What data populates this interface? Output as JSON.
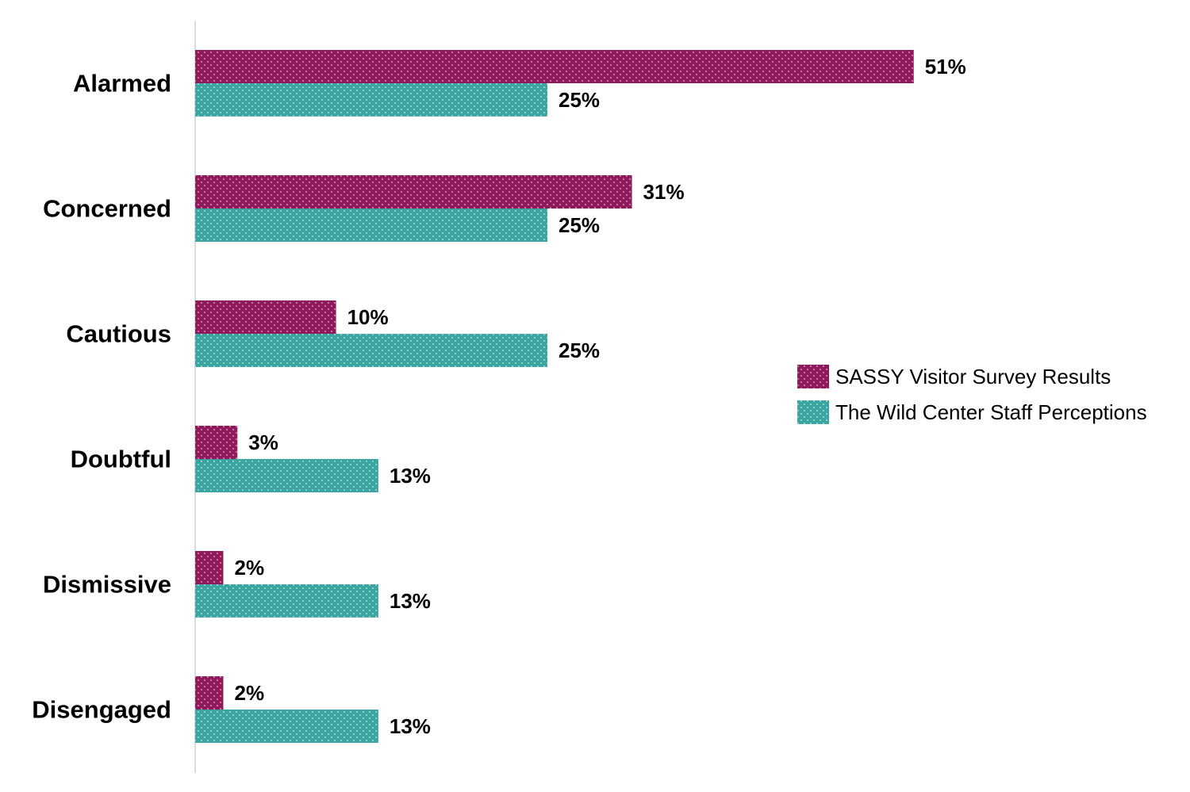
{
  "chart_data": {
    "type": "bar",
    "orientation": "horizontal",
    "categories": [
      "Alarmed",
      "Concerned",
      "Cautious",
      "Doubtful",
      "Dismissive",
      "Disengaged"
    ],
    "series": [
      {
        "name": "SASSY Visitor Survey Results",
        "values": [
          51,
          31,
          10,
          3,
          2,
          2
        ],
        "labels": [
          "51%",
          "31%",
          "10%",
          "3%",
          "2%",
          "2%"
        ],
        "color": "#8E1A5B",
        "dot_color": "#E9B9D2"
      },
      {
        "name": "The Wild Center Staff Perceptions",
        "values": [
          25,
          25,
          25,
          13,
          13,
          13
        ],
        "labels": [
          "25%",
          "25%",
          "25%",
          "13%",
          "13%",
          "13%"
        ],
        "color": "#3BA5A1",
        "dot_color": "#CFEDEB"
      }
    ],
    "title": "",
    "xlabel": "",
    "ylabel": "",
    "xlim": [
      0,
      70
    ],
    "grid": false,
    "legend_position": "right",
    "axis_color": "#D0D0D0"
  }
}
